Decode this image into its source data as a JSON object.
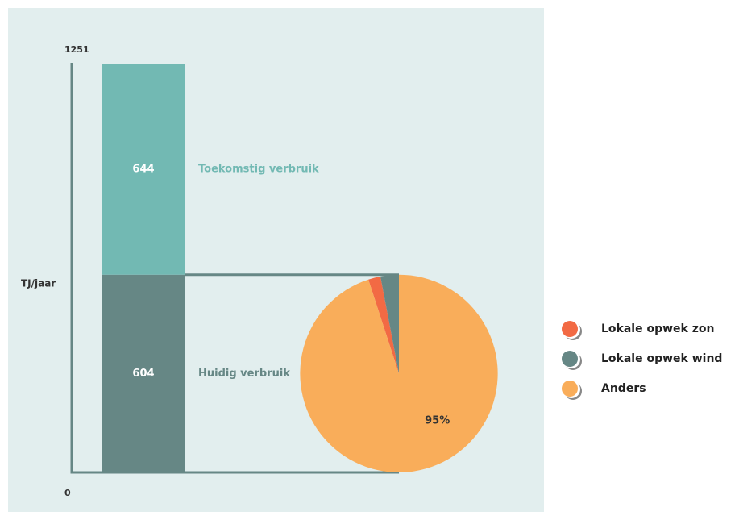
{
  "chart_data": [
    {
      "type": "stacked_bar",
      "ylabel": "TJ/jaar",
      "ylim": [
        0,
        1251
      ],
      "yticks": [
        0,
        1251
      ],
      "series": [
        {
          "name": "Huidig verbruik",
          "color": "#668785",
          "values": [
            604
          ]
        },
        {
          "name": "Toekomstig verbruik",
          "color": "#72b9b3",
          "values": [
            644
          ]
        }
      ]
    },
    {
      "type": "pie",
      "categories": [
        "Lokale opwek zon",
        "Lokale opwek wind",
        "Anders"
      ],
      "values": [
        2,
        3,
        95
      ],
      "value_labels": [
        "2%",
        "3%",
        "95%"
      ],
      "colors": [
        "#f26a44",
        "#668785",
        "#f9ad5a"
      ],
      "legend": "right"
    }
  ]
}
